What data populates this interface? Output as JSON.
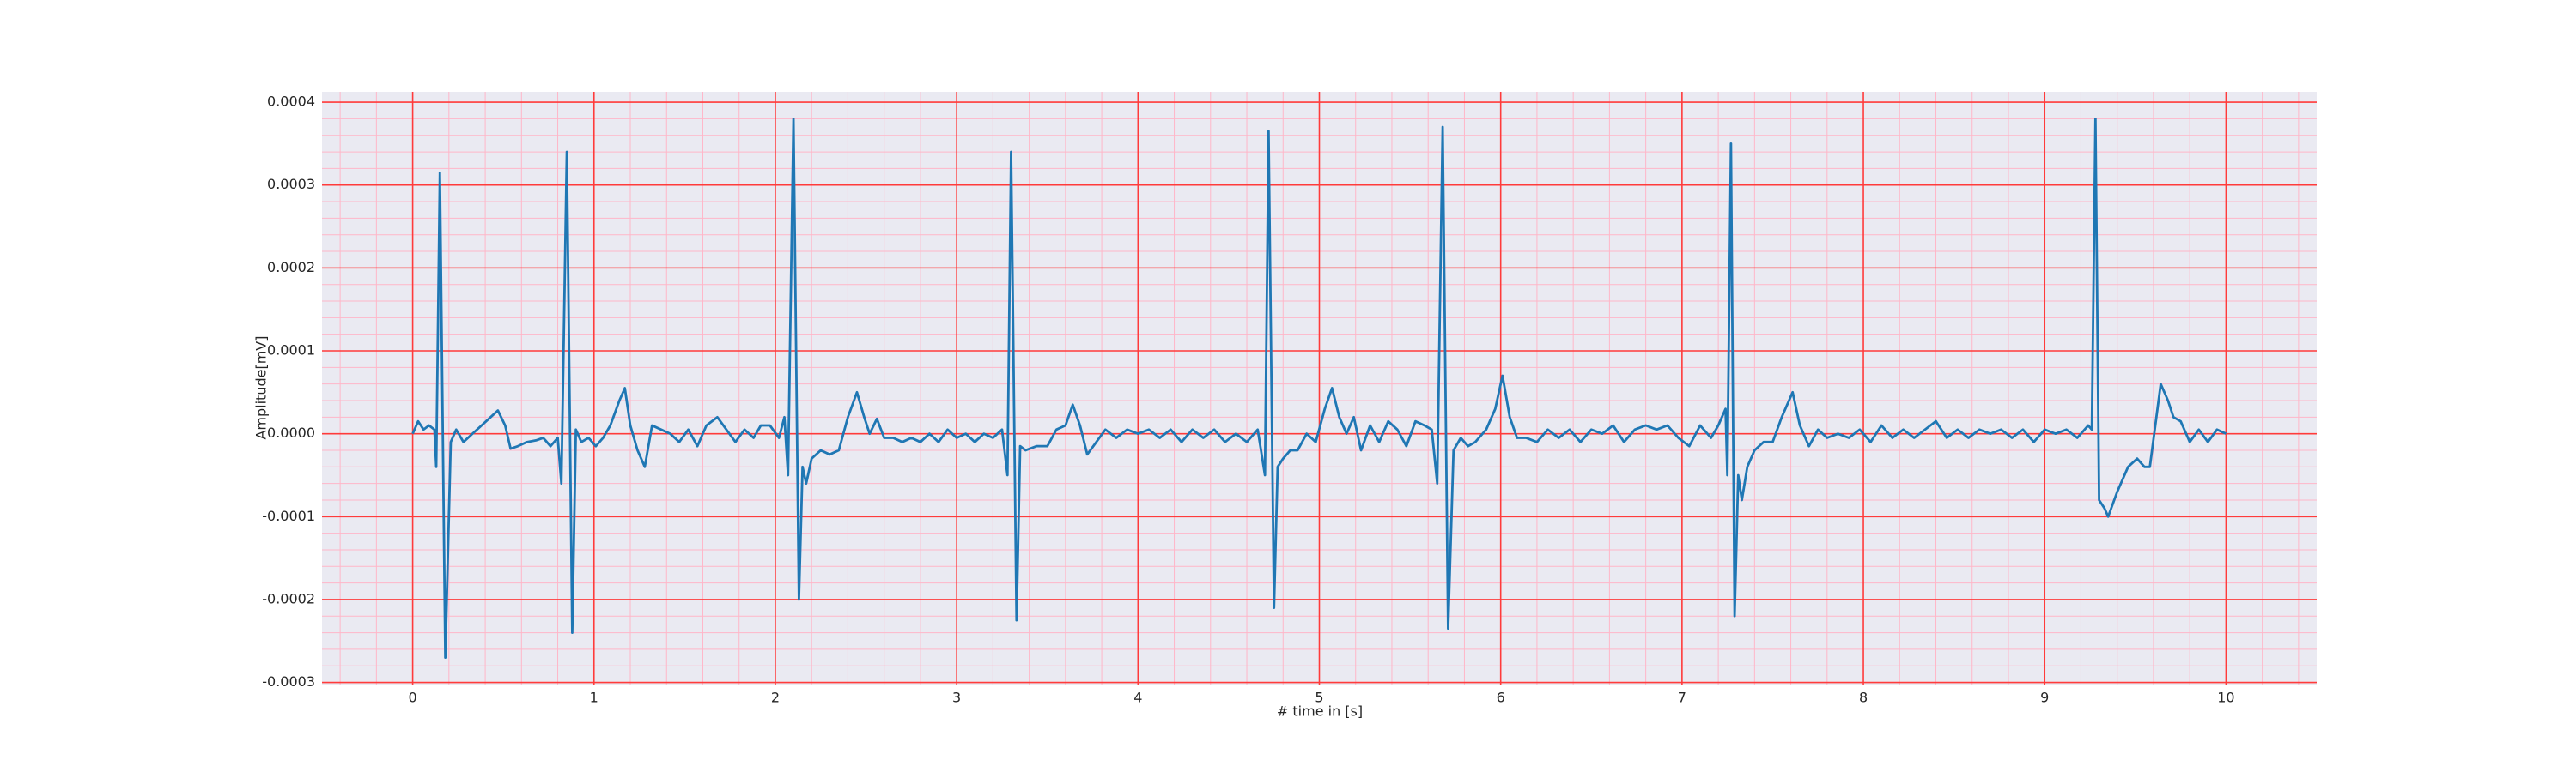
{
  "chart_data": {
    "type": "line",
    "xlabel": "# time in [s]",
    "ylabel": "Amplitude[mV]",
    "color": "#1f77b4",
    "background": "#eaeaf2",
    "grid": true,
    "grid_color": "#ff3b3b",
    "minor_grid": true,
    "minor_grid_color": "#ffb6c8",
    "minor_divisions": 5,
    "xlim": [
      -0.5,
      10.5
    ],
    "ylim": [
      -0.0003025,
      0.0004125
    ],
    "xticks": [
      0,
      1,
      2,
      3,
      4,
      5,
      6,
      7,
      8,
      9,
      10
    ],
    "yticks": [
      {
        "value": -0.0003,
        "label": "-0.0003"
      },
      {
        "value": -0.0002,
        "label": "-0.0002"
      },
      {
        "value": -0.0001,
        "label": "-0.0001"
      },
      {
        "value": 0,
        "label": "0.0000"
      },
      {
        "value": 0.0001,
        "label": "0.0001"
      },
      {
        "value": 0.0002,
        "label": "0.0002"
      },
      {
        "value": 0.0003,
        "label": "0.0003"
      },
      {
        "value": 0.0004,
        "label": "0.0004"
      }
    ],
    "x": [
      0,
      0.03,
      0.06,
      0.09,
      0.12,
      0.13,
      0.15,
      0.18,
      0.21,
      0.24,
      0.28,
      0.33,
      0.38,
      0.43,
      0.47,
      0.51,
      0.54,
      0.58,
      0.63,
      0.68,
      0.72,
      0.76,
      0.8,
      0.82,
      0.85,
      0.88,
      0.9,
      0.93,
      0.97,
      1.01,
      1.05,
      1.09,
      1.14,
      1.17,
      1.2,
      1.24,
      1.28,
      1.32,
      1.37,
      1.42,
      1.47,
      1.52,
      1.57,
      1.62,
      1.68,
      1.73,
      1.78,
      1.83,
      1.88,
      1.92,
      1.97,
      2.02,
      2.05,
      2.07,
      2.1,
      2.13,
      2.15,
      2.17,
      2.2,
      2.25,
      2.3,
      2.35,
      2.4,
      2.45,
      2.49,
      2.52,
      2.56,
      2.6,
      2.65,
      2.7,
      2.75,
      2.8,
      2.85,
      2.9,
      2.95,
      3,
      3.05,
      3.1,
      3.15,
      3.2,
      3.25,
      3.28,
      3.3,
      3.33,
      3.35,
      3.38,
      3.44,
      3.5,
      3.55,
      3.6,
      3.64,
      3.68,
      3.72,
      3.77,
      3.82,
      3.88,
      3.94,
      4,
      4.06,
      4.12,
      4.18,
      4.24,
      4.3,
      4.36,
      4.42,
      4.48,
      4.54,
      4.6,
      4.66,
      4.7,
      4.72,
      4.75,
      4.77,
      4.8,
      4.84,
      4.88,
      4.93,
      4.98,
      5.03,
      5.07,
      5.11,
      5.15,
      5.19,
      5.23,
      5.28,
      5.33,
      5.38,
      5.43,
      5.48,
      5.53,
      5.58,
      5.62,
      5.65,
      5.68,
      5.71,
      5.74,
      5.78,
      5.82,
      5.86,
      5.92,
      5.97,
      6.01,
      6.05,
      6.09,
      6.14,
      6.2,
      6.26,
      6.32,
      6.38,
      6.44,
      6.5,
      6.56,
      6.62,
      6.68,
      6.74,
      6.8,
      6.86,
      6.92,
      6.98,
      7.04,
      7.1,
      7.16,
      7.2,
      7.24,
      7.25,
      7.27,
      7.29,
      7.31,
      7.33,
      7.36,
      7.4,
      7.45,
      7.5,
      7.55,
      7.61,
      7.65,
      7.7,
      7.75,
      7.8,
      7.86,
      7.92,
      7.98,
      8.04,
      8.1,
      8.16,
      8.22,
      8.28,
      8.34,
      8.4,
      8.46,
      8.52,
      8.58,
      8.64,
      8.7,
      8.76,
      8.82,
      8.88,
      8.94,
      9,
      9.06,
      9.12,
      9.18,
      9.24,
      9.26,
      9.28,
      9.3,
      9.33,
      9.35,
      9.4,
      9.46,
      9.51,
      9.55,
      9.58,
      9.61,
      9.64,
      9.68,
      9.71,
      9.75,
      9.8,
      9.85,
      9.9,
      9.95,
      10
    ],
    "values": [
      0,
      1.5e-05,
      5e-06,
      1e-05,
      5e-06,
      -4e-05,
      0.000315,
      -0.00027,
      -1e-05,
      5e-06,
      -1e-05,
      0,
      1e-05,
      2e-05,
      2.8e-05,
      1e-05,
      -1.8e-05,
      -1.5e-05,
      -1e-05,
      -8e-06,
      -5e-06,
      -1.5e-05,
      -5e-06,
      -6e-05,
      0.00034,
      -0.00024,
      5e-06,
      -1e-05,
      -5e-06,
      -1.5e-05,
      -5e-06,
      1e-05,
      4e-05,
      5.5e-05,
      1e-05,
      -2e-05,
      -4e-05,
      1e-05,
      5e-06,
      0,
      -1e-05,
      5e-06,
      -1.5e-05,
      1e-05,
      2e-05,
      5e-06,
      -1e-05,
      5e-06,
      -5e-06,
      1e-05,
      1e-05,
      -5e-06,
      2e-05,
      -5e-05,
      0.00038,
      -0.0002,
      -4e-05,
      -6e-05,
      -3e-05,
      -2e-05,
      -2.5e-05,
      -2e-05,
      2e-05,
      5e-05,
      2e-05,
      0,
      1.8e-05,
      -5e-06,
      -5e-06,
      -1e-05,
      -5e-06,
      -1e-05,
      0,
      -1e-05,
      5e-06,
      -5e-06,
      0,
      -1e-05,
      0,
      -5e-06,
      5e-06,
      -5e-05,
      0.00034,
      -0.000225,
      -1.5e-05,
      -2e-05,
      -1.5e-05,
      -1.5e-05,
      5e-06,
      1e-05,
      3.5e-05,
      1e-05,
      -2.5e-05,
      -1e-05,
      5e-06,
      -5e-06,
      5e-06,
      0,
      5e-06,
      -5e-06,
      5e-06,
      -1e-05,
      5e-06,
      -5e-06,
      5e-06,
      -1e-05,
      0,
      -1e-05,
      5e-06,
      -5e-05,
      0.000365,
      -0.00021,
      -4e-05,
      -3e-05,
      -2e-05,
      -2e-05,
      0,
      -1e-05,
      3e-05,
      5.5e-05,
      2e-05,
      0,
      2e-05,
      -2e-05,
      1e-05,
      -1e-05,
      1.5e-05,
      5e-06,
      -1.5e-05,
      1.5e-05,
      1e-05,
      5e-06,
      -6e-05,
      0.00037,
      -0.000235,
      -2e-05,
      -5e-06,
      -1.5e-05,
      -1e-05,
      5e-06,
      3e-05,
      7e-05,
      2e-05,
      -5e-06,
      -5e-06,
      -1e-05,
      5e-06,
      -5e-06,
      5e-06,
      -1e-05,
      5e-06,
      0,
      1e-05,
      -1e-05,
      5e-06,
      1e-05,
      5e-06,
      1e-05,
      -5e-06,
      -1.5e-05,
      1e-05,
      -5e-06,
      1e-05,
      3e-05,
      -5e-05,
      0.00035,
      -0.00022,
      -5e-05,
      -8e-05,
      -4e-05,
      -2e-05,
      -1e-05,
      -1e-05,
      2e-05,
      5e-05,
      1e-05,
      -1.5e-05,
      5e-06,
      -5e-06,
      0,
      -5e-06,
      5e-06,
      -1e-05,
      1e-05,
      -5e-06,
      5e-06,
      -5e-06,
      5e-06,
      1.5e-05,
      -5e-06,
      5e-06,
      -5e-06,
      5e-06,
      0,
      5e-06,
      -5e-06,
      5e-06,
      -1e-05,
      5e-06,
      0,
      5e-06,
      -5e-06,
      1e-05,
      5e-06,
      0.00038,
      -8e-05,
      -9e-05,
      -0.0001,
      -7e-05,
      -4e-05,
      -3e-05,
      -4e-05,
      -4e-05,
      1e-05,
      6e-05,
      4e-05,
      2e-05,
      1.5e-05,
      -1e-05,
      5e-06,
      -1e-05,
      5e-06,
      0
    ]
  }
}
